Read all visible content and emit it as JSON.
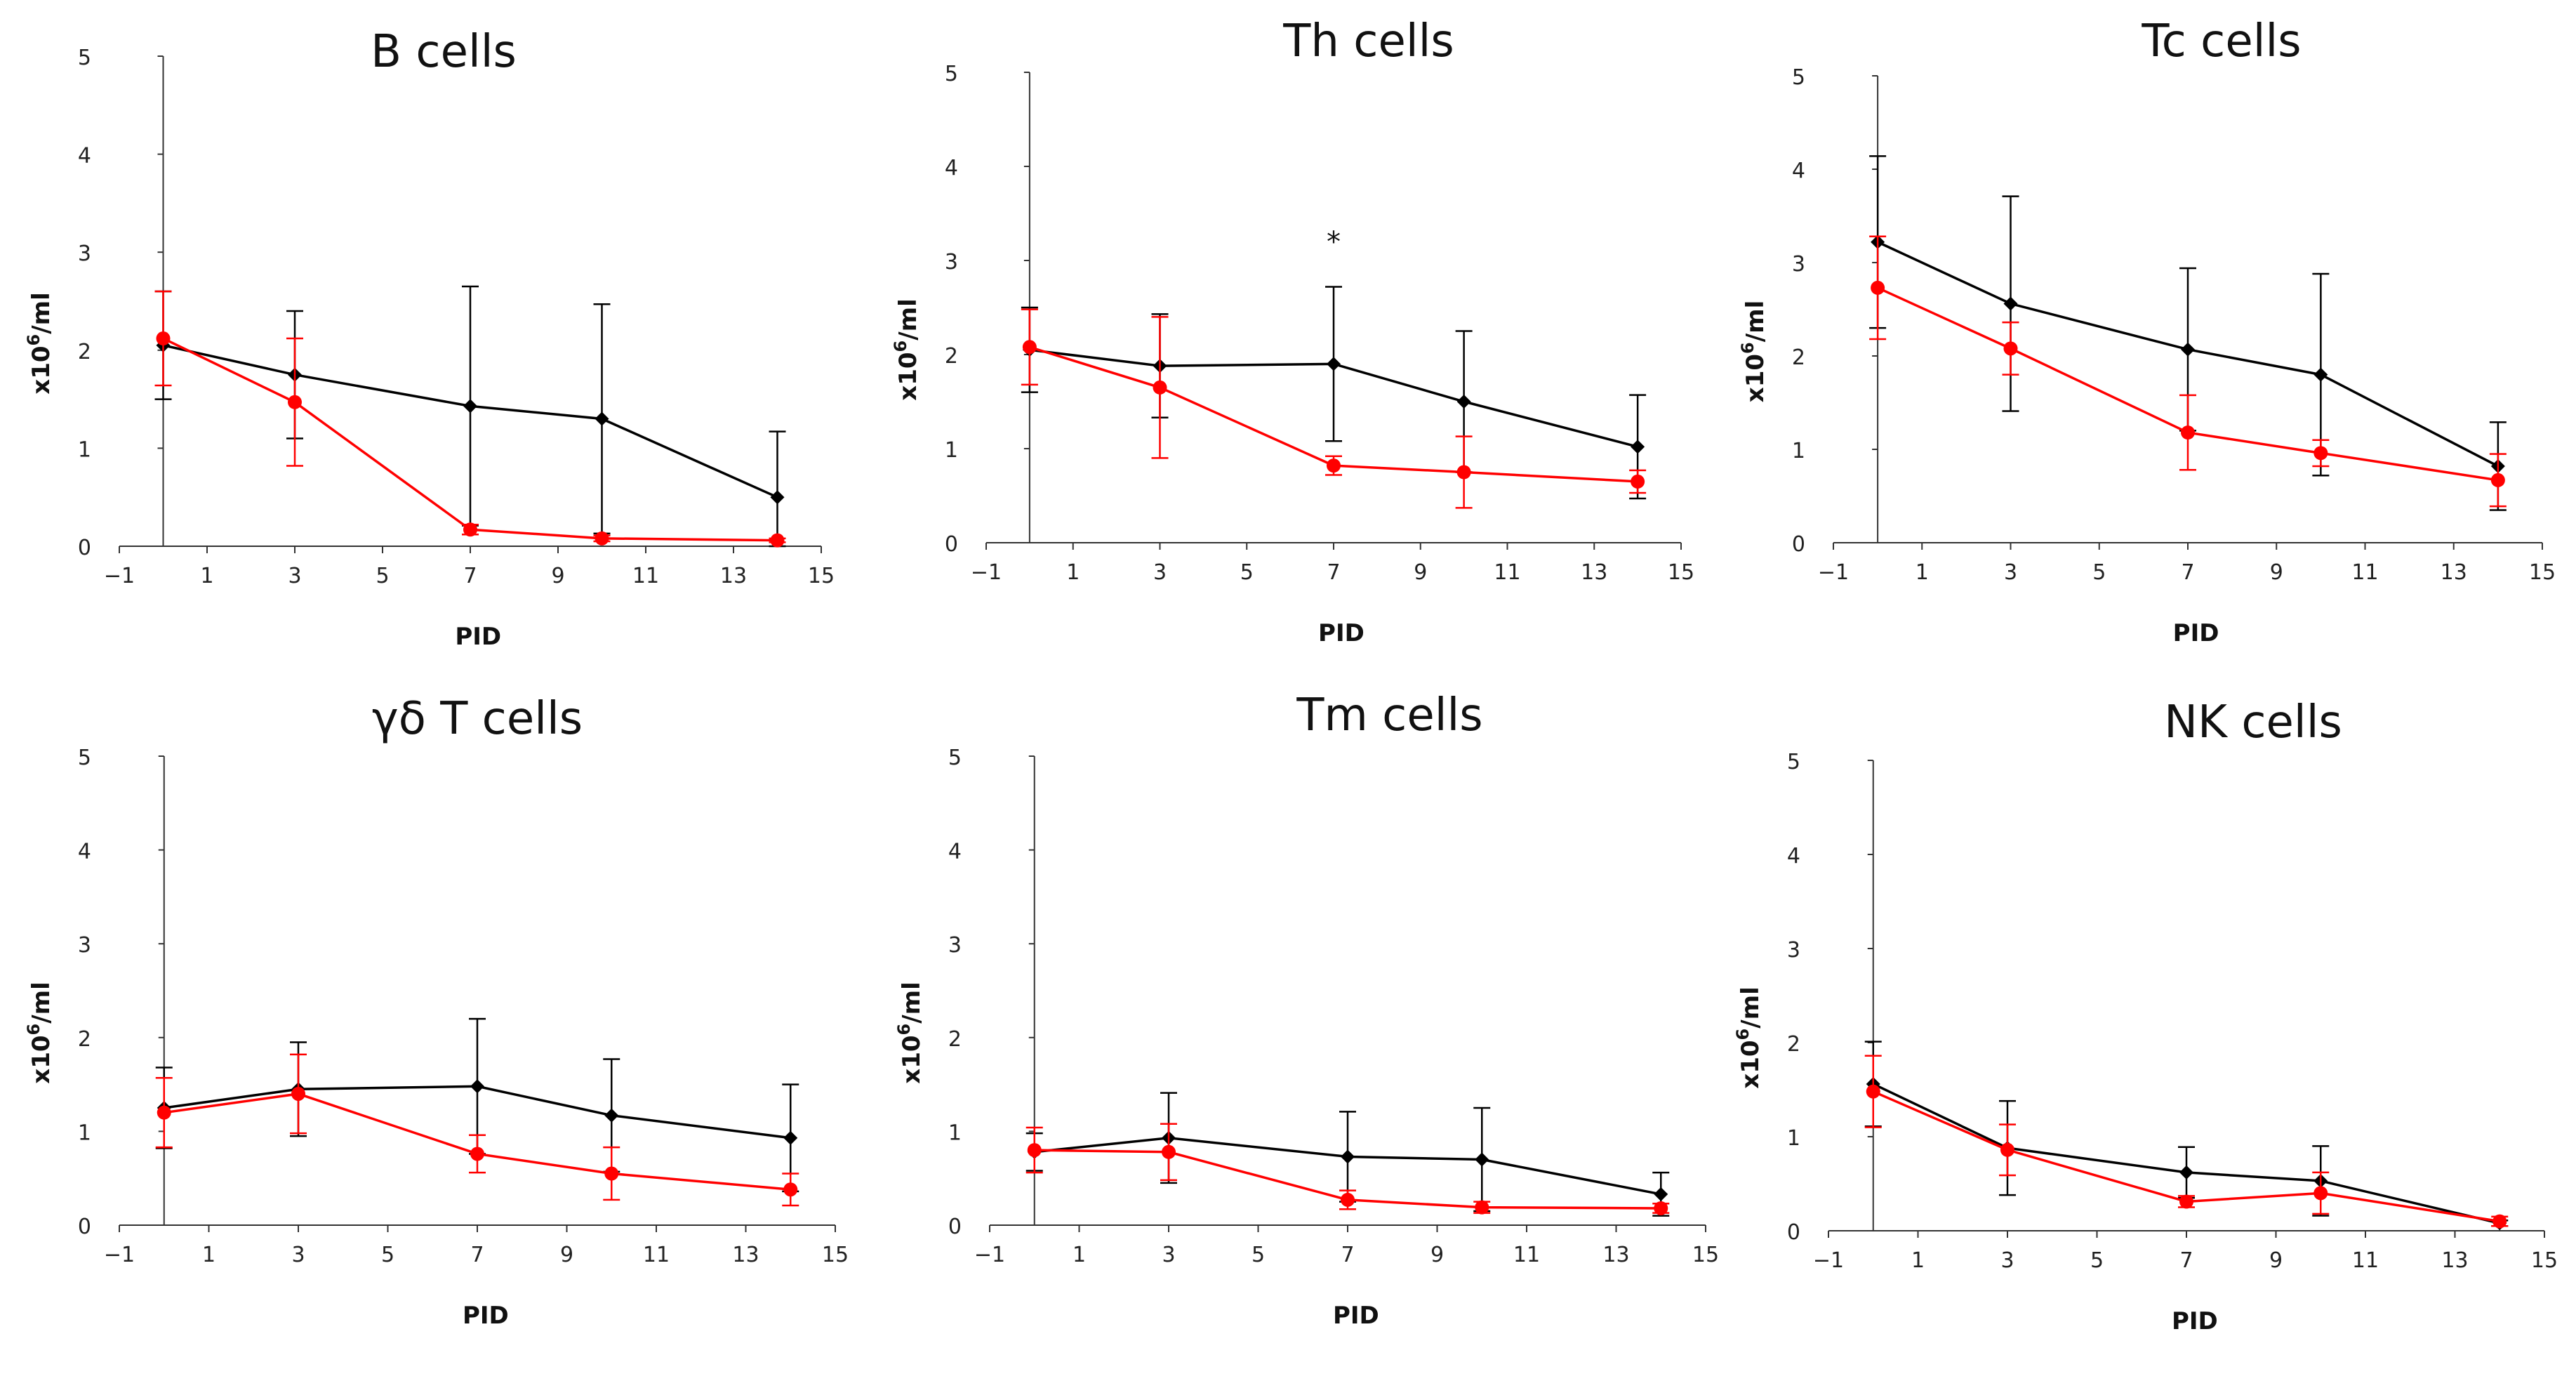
{
  "figure": {
    "panels": [
      "B cells",
      "Th cells",
      "Tc cells",
      "γδ T cells",
      "Tm cells",
      "NK cells"
    ]
  },
  "chart_data": [
    {
      "type": "line",
      "title": "B cells",
      "xlabel": "PID",
      "ylabel_base": "x10",
      "ylabel_sup": "6",
      "ylabel_unit": "/ml",
      "xlim": [
        -1,
        15
      ],
      "ylim": [
        0,
        5
      ],
      "xticks": [
        -1,
        1,
        3,
        5,
        7,
        9,
        11,
        13,
        15
      ],
      "yticks": [
        0,
        1,
        2,
        3,
        4,
        5
      ],
      "x": [
        0,
        3,
        7,
        10,
        14
      ],
      "series": [
        {
          "name": "black",
          "color": "#000000",
          "marker": "diamond",
          "values": [
            2.05,
            1.75,
            1.43,
            1.3,
            0.5
          ],
          "err": [
            0.55,
            0.65,
            1.22,
            1.17,
            0.67
          ]
        },
        {
          "name": "red",
          "color": "#ff0000",
          "marker": "circle",
          "values": [
            2.12,
            1.47,
            0.17,
            0.08,
            0.06
          ],
          "err": [
            0.48,
            0.65,
            0.05,
            0.03,
            0.02
          ]
        }
      ],
      "annotations": []
    },
    {
      "type": "line",
      "title": "Th cells",
      "xlabel": "PID",
      "ylabel_base": "x10",
      "ylabel_sup": "6",
      "ylabel_unit": "/ml",
      "xlim": [
        -1,
        15
      ],
      "ylim": [
        0,
        5
      ],
      "xticks": [
        -1,
        1,
        3,
        5,
        7,
        9,
        11,
        13,
        15
      ],
      "yticks": [
        0,
        1,
        2,
        3,
        4,
        5
      ],
      "x": [
        0,
        3,
        7,
        10,
        14
      ],
      "series": [
        {
          "name": "black",
          "color": "#000000",
          "marker": "diamond",
          "values": [
            2.05,
            1.88,
            1.9,
            1.5,
            1.02
          ],
          "err": [
            0.45,
            0.55,
            0.82,
            0.75,
            0.55
          ]
        },
        {
          "name": "red",
          "color": "#ff0000",
          "marker": "circle",
          "values": [
            2.08,
            1.65,
            0.82,
            0.75,
            0.65
          ],
          "err": [
            0.4,
            0.75,
            0.1,
            0.38,
            0.12
          ]
        }
      ],
      "annotations": [
        {
          "text": "*",
          "x": 7,
          "y": 3.2
        }
      ]
    },
    {
      "type": "line",
      "title": "Tc cells",
      "xlabel": "PID",
      "ylabel_base": "x10",
      "ylabel_sup": "6",
      "ylabel_unit": "/ml",
      "xlim": [
        -1,
        15
      ],
      "ylim": [
        0,
        5
      ],
      "xticks": [
        -1,
        1,
        3,
        5,
        7,
        9,
        11,
        13,
        15
      ],
      "yticks": [
        0,
        1,
        2,
        3,
        4,
        5
      ],
      "x": [
        0,
        3,
        7,
        10,
        14
      ],
      "series": [
        {
          "name": "black",
          "color": "#000000",
          "marker": "diamond",
          "values": [
            3.22,
            2.56,
            2.07,
            1.8,
            0.82
          ],
          "err": [
            0.92,
            1.15,
            0.87,
            1.08,
            0.47
          ]
        },
        {
          "name": "red",
          "color": "#ff0000",
          "marker": "circle",
          "values": [
            2.73,
            2.08,
            1.18,
            0.96,
            0.67
          ],
          "err": [
            0.55,
            0.28,
            0.4,
            0.14,
            0.28
          ]
        }
      ],
      "annotations": []
    },
    {
      "type": "line",
      "title": "γδ T cells",
      "xlabel": "PID",
      "ylabel_base": "x10",
      "ylabel_sup": "6",
      "ylabel_unit": "/ml",
      "xlim": [
        -1,
        15
      ],
      "ylim": [
        0,
        5
      ],
      "xticks": [
        -1,
        1,
        3,
        5,
        7,
        9,
        11,
        13,
        15
      ],
      "yticks": [
        0,
        1,
        2,
        3,
        4,
        5
      ],
      "x": [
        0,
        3,
        7,
        10,
        14
      ],
      "series": [
        {
          "name": "black",
          "color": "#000000",
          "marker": "diamond",
          "values": [
            1.25,
            1.45,
            1.48,
            1.17,
            0.93
          ],
          "err": [
            0.43,
            0.5,
            0.72,
            0.6,
            0.57
          ]
        },
        {
          "name": "red",
          "color": "#ff0000",
          "marker": "circle",
          "values": [
            1.2,
            1.4,
            0.76,
            0.55,
            0.38
          ],
          "err": [
            0.37,
            0.42,
            0.2,
            0.28,
            0.17
          ]
        }
      ],
      "annotations": []
    },
    {
      "type": "line",
      "title": "Tm cells",
      "xlabel": "PID",
      "ylabel_base": "x10",
      "ylabel_sup": "6",
      "ylabel_unit": "/ml",
      "xlim": [
        -1,
        15
      ],
      "ylim": [
        0,
        5
      ],
      "xticks": [
        -1,
        1,
        3,
        5,
        7,
        9,
        11,
        13,
        15
      ],
      "yticks": [
        0,
        1,
        2,
        3,
        4,
        5
      ],
      "x": [
        0,
        3,
        7,
        10,
        14
      ],
      "series": [
        {
          "name": "black",
          "color": "#000000",
          "marker": "diamond",
          "values": [
            0.78,
            0.93,
            0.73,
            0.7,
            0.33
          ],
          "err": [
            0.2,
            0.48,
            0.48,
            0.55,
            0.23
          ]
        },
        {
          "name": "red",
          "color": "#ff0000",
          "marker": "circle",
          "values": [
            0.8,
            0.78,
            0.27,
            0.19,
            0.18
          ],
          "err": [
            0.24,
            0.3,
            0.1,
            0.06,
            0.05
          ]
        }
      ],
      "annotations": []
    },
    {
      "type": "line",
      "title": "NK cells",
      "xlabel": "PID",
      "ylabel_base": "x10",
      "ylabel_sup": "6",
      "ylabel_unit": "/ml",
      "xlim": [
        -1,
        15
      ],
      "ylim": [
        0,
        5
      ],
      "xticks": [
        -1,
        1,
        3,
        5,
        7,
        9,
        11,
        13,
        15
      ],
      "yticks": [
        0,
        1,
        2,
        3,
        4,
        5
      ],
      "x": [
        0,
        3,
        7,
        10,
        14
      ],
      "series": [
        {
          "name": "black",
          "color": "#000000",
          "marker": "diamond",
          "values": [
            1.56,
            0.88,
            0.62,
            0.53,
            0.08
          ],
          "err": [
            0.45,
            0.5,
            0.27,
            0.37,
            0.03
          ]
        },
        {
          "name": "red",
          "color": "#ff0000",
          "marker": "circle",
          "values": [
            1.48,
            0.86,
            0.31,
            0.4,
            0.1
          ],
          "err": [
            0.38,
            0.27,
            0.06,
            0.22,
            0.05
          ]
        }
      ],
      "annotations": []
    }
  ]
}
